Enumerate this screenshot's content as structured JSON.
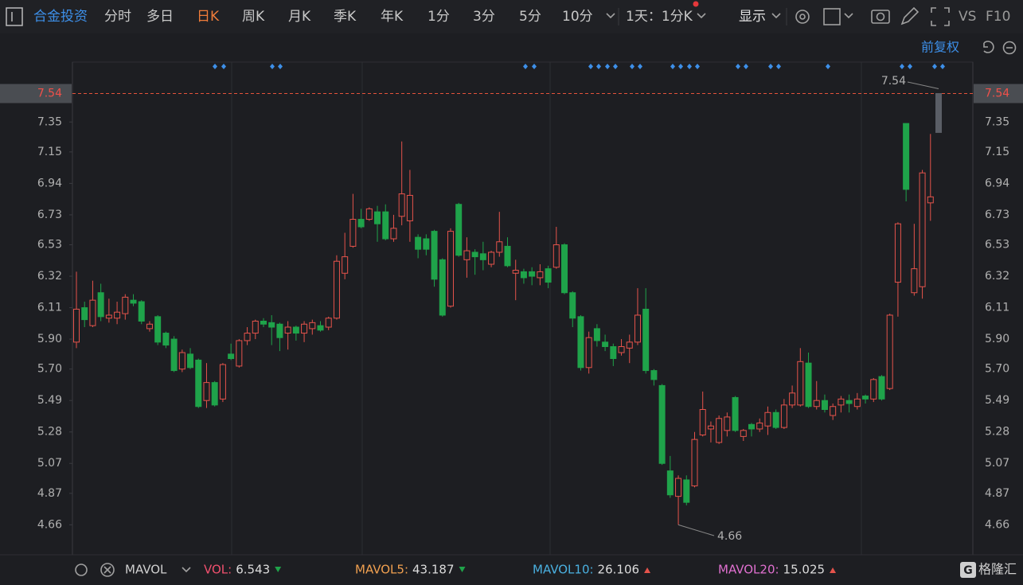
{
  "toolbar": {
    "stock": "合金投资",
    "periods": [
      "分时",
      "多日",
      "日K",
      "周K",
      "月K",
      "季K",
      "年K",
      "1分",
      "3分",
      "5分",
      "10分"
    ],
    "active_period": 2,
    "range": "1天：1分K",
    "display": "显示",
    "compare": "VS",
    "f10": "F10",
    "adjust": "前复权"
  },
  "chart_data": {
    "type": "candlestick",
    "ylim": [
      4.46,
      7.75
    ],
    "yticks": [
      7.54,
      7.35,
      7.15,
      6.94,
      6.73,
      6.53,
      6.32,
      6.11,
      {
        "value": 5.9,
        "label": "5.90"
      },
      {
        "value": 5.7,
        "label": "5.70"
      },
      5.49,
      5.28,
      5.07,
      4.87,
      4.66
    ],
    "colors": {
      "up": "#e5534b",
      "down": "#1fa34a",
      "current": "#5a5e66"
    },
    "current_price": 7.54,
    "high_label": 7.54,
    "low_label": 4.66,
    "open": [
      5.88,
      6.11,
      5.99,
      6.21,
      6.04,
      6.04,
      6.07,
      6.16,
      6.15,
      5.97,
      6.05,
      5.94,
      5.9,
      5.7,
      5.8,
      5.76,
      5.49,
      5.61,
      5.5,
      5.8,
      5.72,
      5.89,
      5.94,
      6.02,
      6.01,
      6.0,
      5.94,
      5.98,
      5.94,
      5.97,
      5.99,
      5.98,
      6.04,
      6.34,
      6.52,
      6.7,
      6.7,
      6.75,
      6.75,
      6.57,
      6.72,
      6.69,
      6.58,
      6.57,
      6.62,
      6.43,
      6.12,
      6.8,
      6.43,
      6.48,
      6.47,
      6.4,
      6.48,
      6.52,
      6.34,
      6.35,
      6.35,
      6.31,
      6.37,
      6.38,
      6.53,
      6.21,
      6.05,
      5.71,
      5.97,
      5.88,
      5.85,
      5.81,
      5.84,
      5.88,
      6.1,
      5.69,
      5.59,
      5.02,
      4.85,
      4.96,
      4.92,
      5.26,
      5.3,
      5.21,
      5.29,
      5.51,
      5.25,
      5.33,
      5.3,
      5.32,
      5.41,
      5.31,
      5.46,
      5.46,
      5.74,
      5.45,
      5.49,
      5.39,
      5.46,
      5.49,
      5.45,
      5.52,
      5.5,
      5.65,
      5.57,
      6.28,
      7.34,
      6.21,
      6.25,
      6.81,
      7.28
    ],
    "high": [
      6.35,
      6.15,
      6.29,
      6.27,
      6.17,
      6.15,
      6.2,
      6.2,
      6.16,
      6.02,
      6.06,
      5.95,
      5.92,
      5.83,
      5.84,
      5.77,
      5.74,
      5.62,
      5.74,
      5.87,
      5.9,
      5.98,
      6.03,
      6.04,
      6.06,
      6.01,
      6.02,
      5.99,
      6.02,
      6.03,
      6.02,
      6.05,
      6.46,
      6.61,
      6.87,
      6.77,
      6.78,
      6.79,
      6.8,
      6.73,
      7.22,
      7.03,
      6.6,
      6.6,
      6.63,
      6.44,
      6.64,
      6.81,
      6.58,
      6.5,
      6.55,
      6.49,
      6.75,
      6.58,
      6.43,
      6.37,
      6.38,
      6.4,
      6.39,
      6.65,
      6.54,
      6.22,
      6.06,
      5.95,
      6.0,
      5.93,
      5.87,
      5.9,
      5.93,
      6.24,
      6.24,
      5.7,
      5.6,
      5.12,
      4.99,
      4.99,
      5.28,
      5.55,
      5.35,
      5.39,
      5.41,
      5.52,
      5.3,
      5.34,
      5.37,
      5.45,
      5.43,
      5.5,
      5.59,
      5.84,
      5.81,
      5.62,
      5.53,
      5.47,
      5.52,
      5.53,
      5.54,
      5.53,
      5.64,
      5.66,
      6.07,
      6.68,
      7.34,
      6.67,
      7.03,
      7.27,
      7.54
    ],
    "low": [
      5.84,
      5.98,
      5.98,
      6.02,
      6.01,
      6.0,
      6.03,
      6.12,
      6.0,
      5.95,
      5.86,
      5.84,
      5.68,
      5.68,
      5.7,
      5.44,
      5.44,
      5.45,
      5.48,
      5.76,
      5.71,
      5.86,
      5.9,
      5.98,
      5.86,
      5.82,
      5.83,
      5.89,
      5.88,
      5.93,
      5.95,
      5.96,
      6.03,
      6.3,
      6.51,
      6.64,
      6.69,
      6.55,
      6.56,
      6.55,
      6.66,
      6.55,
      6.44,
      6.46,
      6.25,
      6.05,
      6.11,
      6.45,
      6.31,
      6.33,
      6.36,
      6.38,
      6.45,
      6.38,
      6.16,
      6.27,
      6.26,
      6.26,
      6.24,
      6.37,
      6.2,
      5.98,
      5.69,
      5.67,
      5.85,
      5.82,
      5.72,
      5.79,
      5.74,
      5.86,
      5.67,
      5.59,
      5.06,
      4.84,
      4.66,
      4.79,
      4.91,
      5.25,
      5.21,
      5.2,
      5.25,
      5.28,
      5.22,
      5.25,
      5.28,
      5.26,
      5.3,
      5.3,
      5.44,
      5.45,
      5.44,
      5.43,
      5.41,
      5.36,
      5.41,
      5.41,
      5.43,
      5.47,
      5.48,
      5.49,
      5.56,
      6.05,
      6.82,
      6.19,
      6.17,
      6.69,
      7.28
    ],
    "close": [
      6.1,
      6.03,
      6.16,
      6.05,
      6.06,
      6.08,
      6.18,
      6.14,
      6.02,
      6.0,
      5.88,
      5.86,
      5.69,
      5.81,
      5.71,
      5.45,
      5.61,
      5.46,
      5.73,
      5.77,
      5.89,
      5.94,
      6.02,
      6.0,
      5.98,
      5.91,
      5.98,
      5.94,
      6.0,
      6.01,
      5.96,
      6.04,
      6.42,
      6.45,
      6.7,
      6.65,
      6.77,
      6.67,
      6.57,
      6.64,
      6.87,
      6.86,
      6.5,
      6.5,
      6.3,
      6.06,
      6.62,
      6.46,
      6.49,
      6.45,
      6.43,
      6.48,
      6.55,
      6.39,
      6.36,
      6.31,
      6.32,
      6.35,
      6.28,
      6.53,
      6.21,
      6.04,
      5.71,
      5.91,
      5.89,
      5.85,
      5.77,
      5.85,
      5.88,
      6.06,
      5.69,
      5.63,
      5.07,
      4.86,
      4.97,
      4.81,
      5.23,
      5.43,
      5.32,
      5.37,
      5.38,
      5.29,
      5.29,
      5.3,
      5.34,
      5.41,
      5.31,
      5.46,
      5.54,
      5.75,
      5.45,
      5.49,
      5.43,
      5.45,
      5.5,
      5.47,
      5.5,
      5.5,
      5.63,
      5.5,
      6.06,
      6.67,
      6.9,
      6.37,
      7.01,
      6.85,
      7.54
    ]
  },
  "indicator_bar": {
    "name": "MAVOL",
    "items": [
      {
        "label": "VOL:",
        "value": 6.543,
        "color": "#f0506e",
        "trend": "down"
      },
      {
        "label": "MAVOL5:",
        "value": 43.187,
        "color": "#f0a050",
        "trend": "down"
      },
      {
        "label": "MAVOL10:",
        "value": 26.106,
        "color": "#4ab0e0",
        "trend": "up"
      },
      {
        "label": "MAVOL20:",
        "value": 15.025,
        "color": "#e070d0",
        "trend": "up"
      }
    ]
  },
  "logo": "格隆汇"
}
